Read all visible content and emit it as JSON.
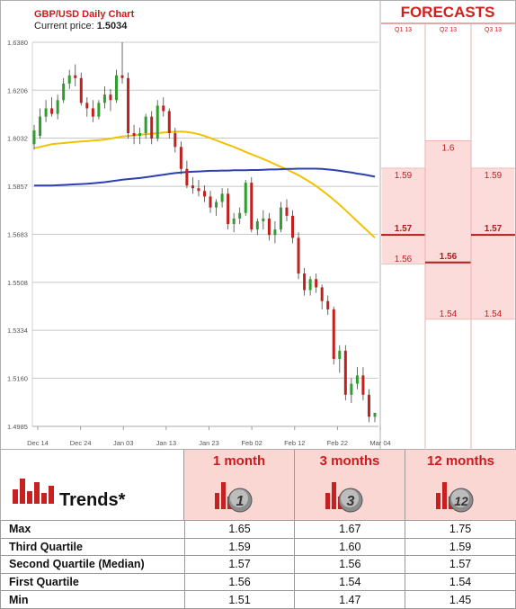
{
  "chart_data": {
    "type": "candlestick",
    "title": "GBP/USD Daily Chart",
    "current_price_label": "Current price:",
    "current_price": "1.5034",
    "y_axis": {
      "ylim": [
        1.4985,
        1.638
      ],
      "ticks": [
        "1.6380",
        "1.6206",
        "1.6032",
        "1.5857",
        "1.5683",
        "1.5508",
        "1.5334",
        "1.5160",
        "1.4985"
      ]
    },
    "x_axis": {
      "ticks": [
        "Dec 14",
        "Dec 24",
        "Jan 03",
        "Jan 13",
        "Jan 23",
        "Feb 02",
        "Feb 12",
        "Feb 22",
        "Mar 04"
      ]
    },
    "candles": [
      [
        1.601,
        1.608,
        1.599,
        1.606
      ],
      [
        1.604,
        1.614,
        1.603,
        1.611
      ],
      [
        1.611,
        1.617,
        1.609,
        1.614
      ],
      [
        1.614,
        1.618,
        1.611,
        1.612
      ],
      [
        1.612,
        1.619,
        1.61,
        1.617
      ],
      [
        1.617,
        1.625,
        1.616,
        1.623
      ],
      [
        1.623,
        1.628,
        1.621,
        1.626
      ],
      [
        1.626,
        1.63,
        1.622,
        1.625
      ],
      [
        1.625,
        1.627,
        1.615,
        1.616
      ],
      [
        1.616,
        1.618,
        1.611,
        1.614
      ],
      [
        1.614,
        1.617,
        1.609,
        1.611
      ],
      [
        1.611,
        1.617,
        1.61,
        1.616
      ],
      [
        1.616,
        1.622,
        1.614,
        1.619
      ],
      [
        1.619,
        1.621,
        1.613,
        1.617
      ],
      [
        1.617,
        1.628,
        1.616,
        1.626
      ],
      [
        1.626,
        1.638,
        1.623,
        1.625
      ],
      [
        1.625,
        1.627,
        1.603,
        1.605
      ],
      [
        1.605,
        1.608,
        1.601,
        1.604
      ],
      [
        1.604,
        1.607,
        1.601,
        1.605
      ],
      [
        1.605,
        1.612,
        1.603,
        1.611
      ],
      [
        1.611,
        1.613,
        1.601,
        1.603
      ],
      [
        1.603,
        1.617,
        1.602,
        1.615
      ],
      [
        1.615,
        1.618,
        1.611,
        1.613
      ],
      [
        1.613,
        1.614,
        1.603,
        1.605
      ],
      [
        1.605,
        1.607,
        1.598,
        1.6
      ],
      [
        1.6,
        1.602,
        1.59,
        1.592
      ],
      [
        1.592,
        1.595,
        1.585,
        1.586
      ],
      [
        1.586,
        1.589,
        1.583,
        1.585
      ],
      [
        1.585,
        1.588,
        1.582,
        1.584
      ],
      [
        1.584,
        1.586,
        1.58,
        1.582
      ],
      [
        1.582,
        1.584,
        1.576,
        1.578
      ],
      [
        1.578,
        1.581,
        1.575,
        1.58
      ],
      [
        1.58,
        1.585,
        1.578,
        1.583
      ],
      [
        1.583,
        1.585,
        1.57,
        1.572
      ],
      [
        1.572,
        1.576,
        1.569,
        1.574
      ],
      [
        1.574,
        1.578,
        1.572,
        1.576
      ],
      [
        1.576,
        1.588,
        1.575,
        1.587
      ],
      [
        1.587,
        1.589,
        1.569,
        1.57
      ],
      [
        1.57,
        1.574,
        1.568,
        1.573
      ],
      [
        1.573,
        1.577,
        1.57,
        1.574
      ],
      [
        1.574,
        1.576,
        1.566,
        1.568
      ],
      [
        1.568,
        1.573,
        1.565,
        1.57
      ],
      [
        1.57,
        1.58,
        1.569,
        1.578
      ],
      [
        1.578,
        1.581,
        1.573,
        1.575
      ],
      [
        1.575,
        1.577,
        1.565,
        1.567
      ],
      [
        1.567,
        1.569,
        1.552,
        1.554
      ],
      [
        1.554,
        1.556,
        1.546,
        1.548
      ],
      [
        1.548,
        1.553,
        1.546,
        1.552
      ],
      [
        1.552,
        1.554,
        1.547,
        1.549
      ],
      [
        1.549,
        1.55,
        1.541,
        1.544
      ],
      [
        1.544,
        1.546,
        1.539,
        1.541
      ],
      [
        1.541,
        1.542,
        1.521,
        1.523
      ],
      [
        1.523,
        1.528,
        1.518,
        1.526
      ],
      [
        1.526,
        1.528,
        1.508,
        1.51
      ],
      [
        1.51,
        1.516,
        1.507,
        1.514
      ],
      [
        1.514,
        1.52,
        1.512,
        1.517
      ],
      [
        1.517,
        1.52,
        1.508,
        1.51
      ],
      [
        1.51,
        1.512,
        1.5,
        1.502
      ],
      [
        1.502,
        1.503,
        1.5,
        1.5034
      ]
    ],
    "series": [
      {
        "name": "",
        "color": "#f2c100",
        "values": [
          1.5995,
          1.6,
          1.6005,
          1.601,
          1.6012,
          1.6014,
          1.6016,
          1.6018,
          1.602,
          1.6021,
          1.6023,
          1.6025,
          1.6027,
          1.603,
          1.6034,
          1.6038,
          1.604,
          1.6042,
          1.6044,
          1.6046,
          1.6048,
          1.605,
          1.6052,
          1.6054,
          1.6055,
          1.6056,
          1.6054,
          1.6051,
          1.6046,
          1.604,
          1.6032,
          1.6024,
          1.6016,
          1.6008,
          1.6,
          1.5991,
          1.5982,
          1.5973,
          1.5965,
          1.5956,
          1.5947,
          1.5937,
          1.5928,
          1.5918,
          1.5908,
          1.5897,
          1.5885,
          1.5872,
          1.5858,
          1.5842,
          1.5826,
          1.5808,
          1.579,
          1.577,
          1.575,
          1.573,
          1.571,
          1.569,
          1.567
        ]
      },
      {
        "name": "",
        "color": "#2e3fae",
        "values": [
          1.586,
          1.586,
          1.586,
          1.586,
          1.5861,
          1.5862,
          1.5863,
          1.5864,
          1.5865,
          1.5866,
          1.5868,
          1.587,
          1.5872,
          1.5875,
          1.5878,
          1.5881,
          1.5883,
          1.5885,
          1.5887,
          1.589,
          1.5893,
          1.5896,
          1.5899,
          1.5902,
          1.5905,
          1.5907,
          1.5909,
          1.591,
          1.5911,
          1.5912,
          1.5913,
          1.5913,
          1.5914,
          1.5914,
          1.5915,
          1.5915,
          1.5915,
          1.5916,
          1.5916,
          1.5917,
          1.5918,
          1.5918,
          1.5919,
          1.592,
          1.592,
          1.5921,
          1.5921,
          1.5921,
          1.5921,
          1.592,
          1.5918,
          1.5916,
          1.5913,
          1.591,
          1.5907,
          1.5903,
          1.59,
          1.5896,
          1.5892
        ]
      }
    ],
    "colors": {
      "up": "#2f9e2f",
      "down": "#c0201e",
      "grid": "#c8c8c8"
    }
  },
  "forecasts": {
    "title": "FORECASTS",
    "columns": [
      {
        "label": "Q1 13",
        "top": 1.59,
        "median": 1.57,
        "bottom": 1.56,
        "top_label": "1.59",
        "median_label": "1.57",
        "bottom_label": "1.56"
      },
      {
        "label": "Q2 13",
        "top": 1.6,
        "median": 1.56,
        "bottom": 1.54,
        "top_label": "1.6",
        "median_label": "1.56",
        "bottom_label": "1.54"
      },
      {
        "label": "Q3 13",
        "top": 1.59,
        "median": 1.57,
        "bottom": 1.54,
        "top_label": "1.59",
        "median_label": "1.57",
        "bottom_label": "1.54"
      }
    ]
  },
  "trends": {
    "title": "Trends*",
    "horizons": [
      {
        "label": "1 month",
        "badge": "1"
      },
      {
        "label": "3 months",
        "badge": "3"
      },
      {
        "label": "12 months",
        "badge": "12"
      }
    ],
    "rows": [
      {
        "label": "Max",
        "values": [
          "1.65",
          "1.67",
          "1.75"
        ]
      },
      {
        "label": "Third Quartile",
        "values": [
          "1.59",
          "1.60",
          "1.59"
        ]
      },
      {
        "label": "Second Quartile (Median)",
        "values": [
          "1.57",
          "1.56",
          "1.57"
        ]
      },
      {
        "label": "First Quartile",
        "values": [
          "1.56",
          "1.54",
          "1.54"
        ]
      },
      {
        "label": "Min",
        "values": [
          "1.51",
          "1.47",
          "1.45"
        ]
      }
    ]
  }
}
